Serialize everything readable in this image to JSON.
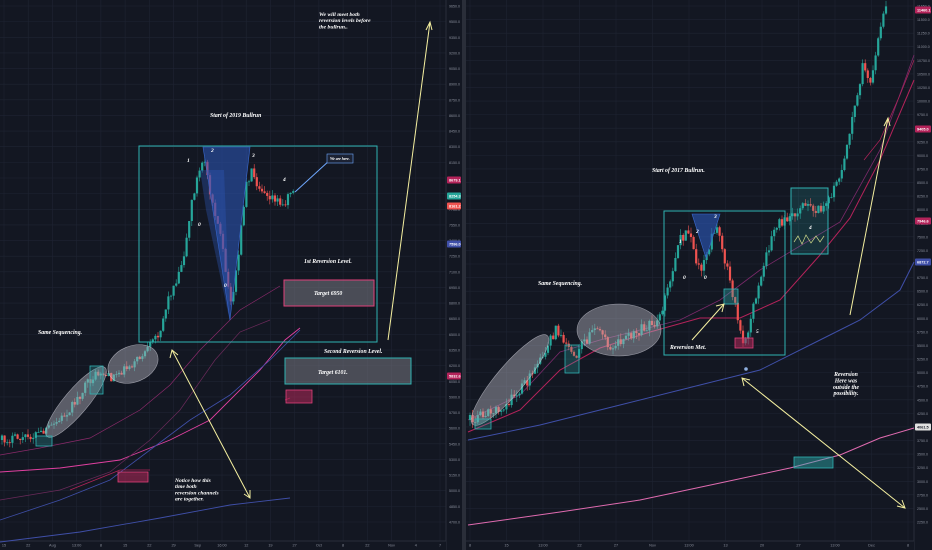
{
  "colors": {
    "background": "#131722",
    "grid": "#1f2433",
    "up": "#26a69a",
    "down": "#ef5350",
    "ma_pink": "#e040a0",
    "ma_blue": "#3f4fa8",
    "box_cyan": "#2fb3b3",
    "annotation": "#ffffff",
    "arrow": "#f5f0a0"
  },
  "chart_data": [
    {
      "type": "candlestick",
      "panel": "left",
      "x_tick_labels": [
        "15",
        "22",
        "Aug",
        "13:00",
        "8",
        "15",
        "22",
        "29",
        "Sep",
        "16:00",
        "12",
        "19",
        "27",
        "Oct",
        "8",
        "22",
        "Nov",
        "4",
        "7"
      ],
      "y_tick_labels": [
        "9650.0",
        "9500.0",
        "9350.0",
        "9200.0",
        "9050.0",
        "8900.0",
        "8750.0",
        "8600.0",
        "8450.0",
        "8300.0",
        "8150.0",
        "8000.0",
        "7850.0",
        "7700.0",
        "7550.0",
        "7400.0",
        "7250.0",
        "7100.0",
        "6950.0",
        "6800.0",
        "6650.0",
        "6500.0",
        "6350.0",
        "6200.0",
        "6050.0",
        "5900.0",
        "5750.0",
        "5600.0",
        "5450.0",
        "5300.0",
        "5150.0",
        "5000.0",
        "4850.0",
        "4700.0"
      ],
      "price_tags": [
        {
          "text": "8679.1",
          "color": "#b4235a"
        },
        {
          "text": "8254.3",
          "color": "#26a69a"
        },
        {
          "text": "8161.2",
          "color": "#ef5350"
        },
        {
          "text": "7596.0",
          "color": "#3f4fa8"
        },
        {
          "text": "5832.6",
          "color": "#b4235a"
        }
      ],
      "annotations": {
        "top_note": "We will meet both reversion levels before the bullrun..",
        "start_label": "Start of 2019 Bullrun",
        "same_seq": "Same Sequencing.",
        "first_rev": "1st Reversion Level.",
        "second_rev": "Second Reversion Level.",
        "target_1": "Target 6950",
        "target_2": "Target 6101.",
        "notice": "Notice how this time both reversion channels are together.",
        "we_are_here": "We are here.",
        "waves": [
          "1",
          "2",
          "3",
          "4",
          "0",
          "0"
        ]
      },
      "series": [
        {
          "name": "Price",
          "kind": "candles"
        },
        {
          "name": "",
          "kind": "ma",
          "color": "#e040a0"
        },
        {
          "name": "",
          "kind": "ma",
          "color": "#3f4fa8"
        }
      ]
    },
    {
      "type": "candlestick",
      "panel": "right",
      "x_tick_labels": [
        "8",
        "15",
        "13:00",
        "22",
        "27",
        "Nov",
        "13:00",
        "13",
        "20",
        "27",
        "13:00",
        "Dec",
        "8"
      ],
      "y_tick_labels": [
        "11650.0",
        "11500.0",
        "11250.0",
        "11000.0",
        "10750.0",
        "10500.0",
        "10250.0",
        "10000.0",
        "9750.0",
        "9500.0",
        "9250.0",
        "9000.0",
        "8750.0",
        "8500.0",
        "8250.0",
        "8000.0",
        "7750.0",
        "7500.0",
        "7250.0",
        "7000.0",
        "6750.0",
        "6500.0",
        "6250.0",
        "6000.0",
        "5750.0",
        "5500.0",
        "5250.0",
        "5000.0",
        "4750.0",
        "4500.0",
        "4250.0",
        "4000.0",
        "3750.0",
        "3500.0",
        "3250.0",
        "3000.0",
        "2750.0",
        "2500.0",
        "2250.0"
      ],
      "price_tags": [
        {
          "text": "11460.1",
          "color": "#b4235a"
        },
        {
          "text": "9405.0",
          "color": "#b4235a"
        },
        {
          "text": "7946.6",
          "color": "#b4235a"
        },
        {
          "text": "6872.7",
          "color": "#3f4fa8"
        },
        {
          "text": "4061.5",
          "color": "#e0e0e0"
        }
      ],
      "annotations": {
        "start_label": "Start of 2017 Bullrun.",
        "same_seq": "Same Sequencing.",
        "rev_met": "Reversion Met.",
        "reversion_note": "Reversion Here was outside the possibility.",
        "waves": [
          "1",
          "2",
          "3",
          "4",
          "5",
          "0",
          "0"
        ]
      },
      "series": [
        {
          "name": "Price",
          "kind": "candles"
        },
        {
          "name": "",
          "kind": "ma",
          "color": "#e040a0"
        },
        {
          "name": "",
          "kind": "ma",
          "color": "#3f4fa8"
        }
      ]
    }
  ]
}
